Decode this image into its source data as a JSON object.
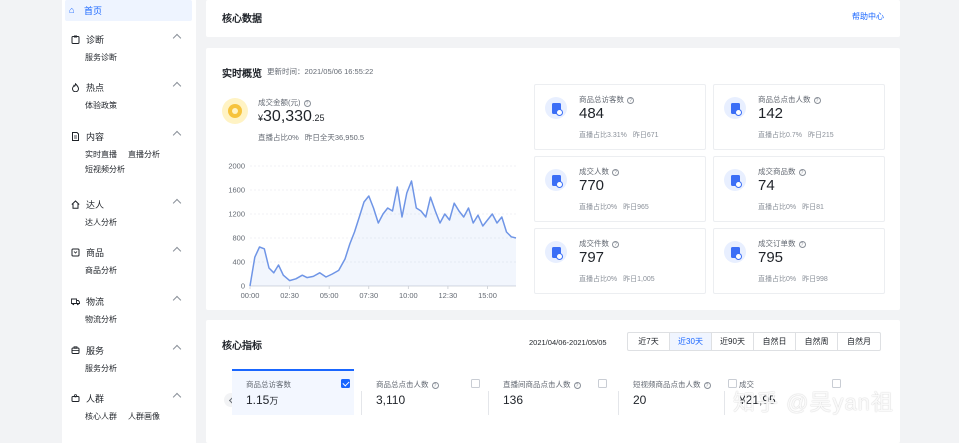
{
  "sidebar": {
    "home": "首页",
    "groups": [
      {
        "title": "诊断",
        "icon": "clipboard-icon",
        "items": [
          "服务诊断"
        ]
      },
      {
        "title": "热点",
        "icon": "fire-icon",
        "items": [
          "体验政策"
        ]
      },
      {
        "title": "内容",
        "icon": "document-icon",
        "items": [
          "实时直播",
          "直播分析",
          "短视频分析"
        ]
      },
      {
        "title": "达人",
        "icon": "home-icon",
        "items": [
          "达人分析"
        ]
      },
      {
        "title": "商品",
        "icon": "box-icon",
        "items": [
          "商品分析"
        ]
      },
      {
        "title": "物流",
        "icon": "truck-icon",
        "items": [
          "物流分析"
        ]
      },
      {
        "title": "服务",
        "icon": "service-icon",
        "items": [
          "服务分析"
        ]
      },
      {
        "title": "人群",
        "icon": "people-icon",
        "items": [
          "核心人群",
          "人群画像"
        ]
      }
    ]
  },
  "header": {
    "title": "核心数据",
    "help": "帮助中心"
  },
  "realtime": {
    "title": "实时概览",
    "update_time": "更新时间：2021/05/06 16:55:22",
    "gmv": {
      "label": "成交金额(元)",
      "currency": "¥",
      "value_int": "30,330",
      "value_dec": ".25",
      "live_ratio": "直播占比0%",
      "yesterday": "昨日全天36,950.5"
    },
    "tiles": [
      {
        "label": "商品总访客数",
        "value": "484",
        "ratio": "直播占比3.31%",
        "yesterday": "昨日671"
      },
      {
        "label": "商品总点击人数",
        "value": "142",
        "ratio": "直播占比0.7%",
        "yesterday": "昨日215"
      },
      {
        "label": "成交人数",
        "value": "770",
        "ratio": "直播占比0%",
        "yesterday": "昨日965"
      },
      {
        "label": "成交商品数",
        "value": "74",
        "ratio": "直播占比0%",
        "yesterday": "昨日81"
      },
      {
        "label": "成交件数",
        "value": "797",
        "ratio": "直播占比0%",
        "yesterday": "昨日1,005"
      },
      {
        "label": "成交订单数",
        "value": "795",
        "ratio": "直播占比0%",
        "yesterday": "昨日998"
      }
    ]
  },
  "chart_data": {
    "type": "area",
    "title": "",
    "xlabel": "",
    "ylabel": "",
    "x_ticks": [
      "00:00",
      "02:30",
      "05:00",
      "07:30",
      "10:00",
      "12:30",
      "15:00"
    ],
    "y_ticks": [
      "0",
      "400",
      "800",
      "1200",
      "1600",
      "2000"
    ],
    "ylim": [
      0,
      2000
    ],
    "x_hours": [
      0.0,
      0.3,
      0.6,
      0.9,
      1.2,
      1.5,
      1.8,
      2.1,
      2.5,
      2.9,
      3.3,
      3.6,
      4.0,
      4.4,
      4.8,
      5.2,
      5.6,
      6.0,
      6.3,
      6.6,
      6.9,
      7.2,
      7.5,
      7.8,
      8.1,
      8.4,
      8.7,
      9.0,
      9.3,
      9.6,
      9.9,
      10.2,
      10.5,
      10.8,
      11.1,
      11.4,
      11.7,
      12.0,
      12.3,
      12.6,
      12.9,
      13.2,
      13.5,
      13.8,
      14.1,
      14.4,
      14.7,
      15.0,
      15.3,
      15.6,
      15.9,
      16.2,
      16.5,
      16.8
    ],
    "values": [
      0,
      480,
      650,
      620,
      300,
      220,
      350,
      180,
      90,
      120,
      180,
      140,
      160,
      220,
      150,
      200,
      260,
      450,
      700,
      900,
      1150,
      1400,
      1500,
      1300,
      1050,
      1200,
      1300,
      1250,
      1650,
      1150,
      1550,
      1750,
      1300,
      1250,
      1150,
      1480,
      1250,
      1050,
      1200,
      1100,
      1380,
      1250,
      1150,
      1300,
      1050,
      1180,
      1000,
      1100,
      1200,
      1050,
      1150,
      900,
      820,
      800
    ]
  },
  "core": {
    "title": "核心指标",
    "range": "2021/04/06-2021/05/05",
    "periods": [
      "近7天",
      "近30天",
      "近90天",
      "自然日",
      "自然周",
      "自然月"
    ],
    "active_period": 1,
    "metrics": [
      {
        "label": "商品总访客数",
        "value": "1.15",
        "unit": "万",
        "checked": true
      },
      {
        "label": "商品总点击人数",
        "value": "3,110",
        "unit": "",
        "checked": false
      },
      {
        "label": "直播间商品点击人数",
        "value": "136",
        "unit": "",
        "checked": false
      },
      {
        "label": "短视频商品点击人数",
        "value": "20",
        "unit": "",
        "checked": false
      },
      {
        "label": "成交",
        "value": "¥21,95",
        "unit": "",
        "checked": false
      }
    ]
  },
  "watermark": "知乎 @吴yan祖"
}
